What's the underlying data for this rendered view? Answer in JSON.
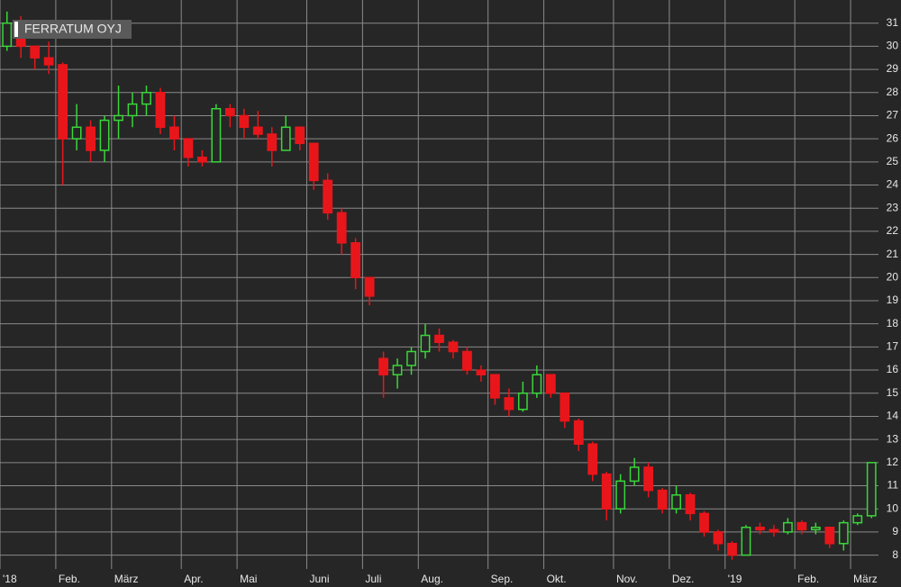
{
  "chart_data": {
    "type": "candlestick",
    "title": "FERRATUM OYJ",
    "categories": [
      "'18",
      null,
      null,
      null,
      "Feb.",
      null,
      null,
      null,
      "März",
      null,
      null,
      null,
      null,
      "Apr.",
      null,
      null,
      null,
      "Mai",
      null,
      null,
      null,
      null,
      "Juni",
      null,
      null,
      null,
      "Juli",
      null,
      null,
      null,
      "Aug.",
      null,
      null,
      null,
      null,
      "Sep.",
      null,
      null,
      null,
      "Okt.",
      null,
      null,
      null,
      null,
      "Nov.",
      null,
      null,
      null,
      "Dez.",
      null,
      null,
      null,
      "'19",
      null,
      null,
      null,
      null,
      "Feb.",
      null,
      null,
      null,
      "März",
      null
    ],
    "open": [
      30,
      31,
      30,
      29.5,
      29.2,
      26,
      26.5,
      25.5,
      26.8,
      27,
      27.5,
      28,
      26.5,
      26,
      25.2,
      25,
      27.3,
      27,
      26.5,
      26.2,
      25.5,
      26.5,
      25.8,
      24.2,
      22.8,
      21.5,
      20,
      16.5,
      15.8,
      16.2,
      16.8,
      17.5,
      17.2,
      16.8,
      16,
      15.8,
      14.8,
      14.3,
      15,
      15.8,
      15,
      13.8,
      12.8,
      11.5,
      10,
      11.2,
      11.8,
      10.8,
      10,
      10.6,
      9.8,
      9,
      8.5,
      8,
      9.2,
      9.1,
      9,
      9.4,
      9.1,
      9.2,
      8.5,
      9.4,
      9.7
    ],
    "high": [
      31.5,
      31.3,
      30,
      30.2,
      29.3,
      27.5,
      26.8,
      27,
      28.3,
      28,
      28.3,
      28.2,
      27,
      26,
      25.5,
      27.5,
      27.5,
      27.3,
      27.2,
      26.5,
      27,
      26.5,
      25.8,
      24.5,
      23,
      21.7,
      20,
      16.8,
      16.5,
      17,
      18,
      17.8,
      17.3,
      17,
      16.2,
      15.8,
      15.2,
      15.5,
      16.2,
      15.8,
      15,
      13.9,
      12.9,
      11.6,
      11.5,
      12.2,
      12,
      10.9,
      11,
      10.7,
      9.9,
      9.1,
      8.6,
      9.3,
      9.4,
      9.3,
      9.6,
      9.5,
      9.4,
      9.2,
      9.5,
      9.8,
      12
    ],
    "low": [
      29.8,
      29.5,
      29,
      28.8,
      24,
      25.5,
      25,
      25,
      26,
      26.5,
      27,
      26.2,
      25.5,
      24.8,
      24.8,
      25,
      26.5,
      26,
      26,
      24.8,
      25.5,
      25.5,
      23.8,
      22.5,
      21,
      19.5,
      18.8,
      14.8,
      15.2,
      15.8,
      16.5,
      16.8,
      16.5,
      15.8,
      15.5,
      14.5,
      14,
      14.2,
      14.8,
      14.8,
      13.5,
      12.5,
      11.2,
      9.5,
      9.8,
      11,
      10.5,
      9.8,
      9.8,
      9.5,
      8.8,
      8.2,
      7.8,
      8,
      8.9,
      8.8,
      8.9,
      8.9,
      8.9,
      8.3,
      8.2,
      9.3,
      9.6
    ],
    "close": [
      31,
      30,
      29.5,
      29.2,
      26,
      26.5,
      25.5,
      26.8,
      27,
      27.5,
      28,
      26.5,
      26,
      25.2,
      25,
      27.3,
      27,
      26.5,
      26.2,
      25.5,
      26.5,
      25.8,
      24.2,
      22.8,
      21.5,
      20,
      19.2,
      15.8,
      16.2,
      16.8,
      17.5,
      17.2,
      16.8,
      16,
      15.8,
      14.8,
      14.3,
      15,
      15.8,
      15,
      13.8,
      12.8,
      11.5,
      10,
      11.2,
      11.8,
      10.8,
      10,
      10.6,
      9.8,
      9,
      8.5,
      8,
      9.2,
      9.1,
      9,
      9.4,
      9.1,
      9.2,
      8.5,
      9.4,
      9.7,
      12
    ],
    "up_color": "#3ad63a",
    "down_color": "#e8161b",
    "ylim": [
      7.4,
      32
    ],
    "yticks": [
      8,
      9,
      10,
      11,
      12,
      13,
      14,
      15,
      16,
      17,
      18,
      19,
      20,
      21,
      22,
      23,
      24,
      25,
      26,
      27,
      28,
      29,
      30,
      31
    ],
    "grid": true
  }
}
